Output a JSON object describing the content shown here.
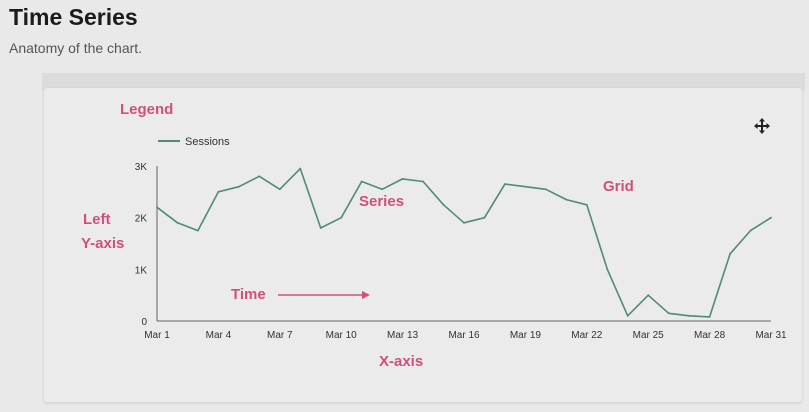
{
  "page": {
    "title": "Time Series",
    "subtitle": "Anatomy of the chart."
  },
  "annotations": {
    "legend": "Legend",
    "left_axis_line1": "Left",
    "left_axis_line2": "Y-axis",
    "series": "Series",
    "grid": "Grid",
    "time": "Time",
    "x_axis": "X-axis"
  },
  "colors": {
    "series_line": "#4f8a7c",
    "annotation": "#d24f7d",
    "axis": "#666666"
  },
  "icons": {
    "move": "move-icon"
  },
  "chart_data": {
    "type": "line",
    "title": "",
    "legend": {
      "position": "top-left"
    },
    "grid": false,
    "y_ticks": [
      "0",
      "1K",
      "2K",
      "3K"
    ],
    "ylim": [
      0,
      3000
    ],
    "x_tick_labels": [
      "Mar 1",
      "Mar 4",
      "Mar 7",
      "Mar 10",
      "Mar 13",
      "Mar 16",
      "Mar 19",
      "Mar 22",
      "Mar 25",
      "Mar 28",
      "Mar 31"
    ],
    "x": [
      "Mar 1",
      "Mar 2",
      "Mar 3",
      "Mar 4",
      "Mar 5",
      "Mar 6",
      "Mar 7",
      "Mar 8",
      "Mar 9",
      "Mar 10",
      "Mar 11",
      "Mar 12",
      "Mar 13",
      "Mar 14",
      "Mar 15",
      "Mar 16",
      "Mar 17",
      "Mar 18",
      "Mar 19",
      "Mar 20",
      "Mar 21",
      "Mar 22",
      "Mar 23",
      "Mar 24",
      "Mar 25",
      "Mar 26",
      "Mar 27",
      "Mar 28",
      "Mar 29",
      "Mar 30",
      "Mar 31"
    ],
    "series": [
      {
        "name": "Sessions",
        "values": [
          2200,
          1900,
          1750,
          2500,
          2600,
          2800,
          2550,
          2950,
          1800,
          2000,
          2700,
          2550,
          2750,
          2700,
          2250,
          1900,
          2000,
          2650,
          2600,
          2550,
          2350,
          2250,
          1000,
          100,
          500,
          150,
          100,
          80,
          1300,
          1750,
          2000
        ]
      }
    ]
  }
}
